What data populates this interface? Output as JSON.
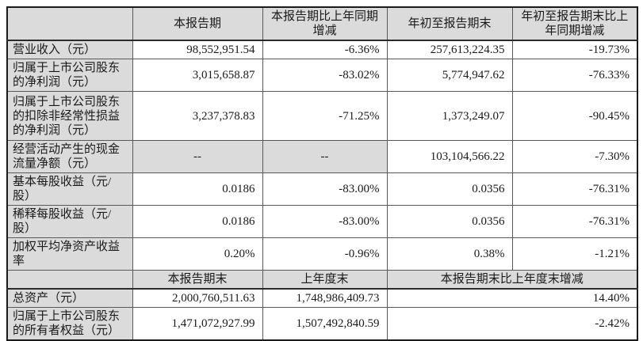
{
  "report_table": {
    "period_header": [
      "",
      "本报告期",
      "本报告期比上年同期增减",
      "年初至报告期末",
      "年初至报告期末比上年同期增减"
    ],
    "period_rows": [
      {
        "label": "营业收入（元）",
        "values": [
          "98,552,951.54",
          "-6.36%",
          "257,613,224.35",
          "-19.73%"
        ]
      },
      {
        "label": "归属于上市公司股东的净利润（元）",
        "values": [
          "3,015,658.87",
          "-83.02%",
          "5,774,947.62",
          "-76.33%"
        ]
      },
      {
        "label": "归属于上市公司股东的扣除非经常性损益的净利润（元）",
        "values": [
          "3,237,378.83",
          "-71.25%",
          "1,373,249.07",
          "-90.45%"
        ]
      },
      {
        "label": "经营活动产生的现金流量净额（元）",
        "values": [
          "--",
          "--",
          "103,104,566.22",
          "-7.30%"
        ]
      },
      {
        "label": "基本每股收益（元/股）",
        "values": [
          "0.0186",
          "-83.00%",
          "0.0356",
          "-76.31%"
        ]
      },
      {
        "label": "稀释每股收益（元/股）",
        "values": [
          "0.0186",
          "-83.00%",
          "0.0356",
          "-76.31%"
        ]
      },
      {
        "label": "加权平均净资产收益率",
        "values": [
          "0.20%",
          "-0.96%",
          "0.38%",
          "-1.21%"
        ]
      }
    ],
    "snapshot_header": [
      "",
      "本报告期末",
      "上年度末",
      "本报告期末比上年度末增减"
    ],
    "snapshot_rows": [
      {
        "label": "总资产（元）",
        "values": [
          "2,000,760,511.63",
          "1,748,986,409.73",
          "14.40%"
        ]
      },
      {
        "label": "归属于上市公司股东的所有者权益（元）",
        "values": [
          "1,471,072,927.99",
          "1,507,492,840.59",
          "-2.42%"
        ]
      }
    ],
    "colors": {
      "shaded_cell": "#DBDBDB",
      "inner_border": "#595959",
      "outer_border": "#1a1a1a",
      "text": "#1a1a1a"
    }
  }
}
